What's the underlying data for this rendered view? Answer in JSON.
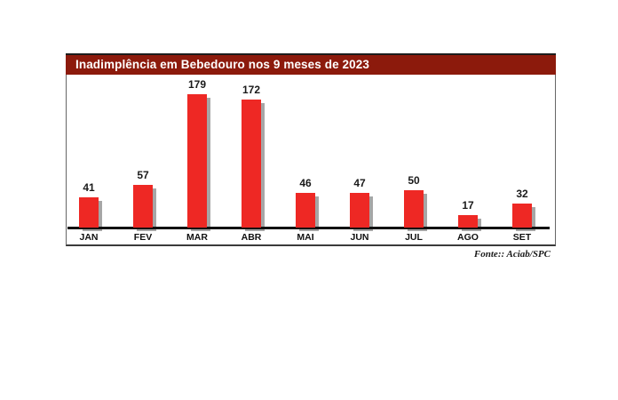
{
  "page": {
    "background": "#ffffff"
  },
  "chart": {
    "title": "Inadimplência em Bebedouro nos 9 meses de 2023",
    "source": "Fonte:: Aciab/SPC",
    "colors": {
      "title_bg": "#8C1A0C",
      "title_text": "#FFFFFF",
      "bar": "#EE2824",
      "bar_shadow": "#A6A6A6",
      "axis_line": "#111111",
      "box_border": "#666666",
      "label_text": "#1A1A1A"
    }
  },
  "chart_data": {
    "type": "bar",
    "title": "Inadimplência em Bebedouro nos 9 meses de 2023",
    "categories": [
      "JAN",
      "FEV",
      "MAR",
      "ABR",
      "MAI",
      "JUN",
      "JUL",
      "AGO",
      "SET"
    ],
    "values": [
      41,
      57,
      179,
      172,
      46,
      47,
      50,
      17,
      32
    ],
    "xlabel": "",
    "ylabel": "",
    "ylim": [
      0,
      185
    ],
    "grid": false,
    "legend": false,
    "value_labels": true,
    "bar_style": "flat red with gray drop shadow offset down-right",
    "source": "Fonte:: Aciab/SPC"
  }
}
